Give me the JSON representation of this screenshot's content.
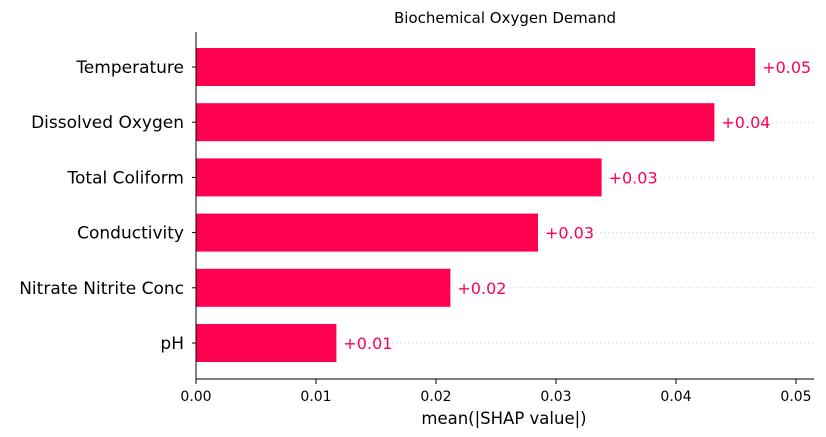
{
  "chart_data": {
    "type": "bar",
    "orientation": "horizontal",
    "title": "Biochemical Oxygen Demand",
    "xlabel": "mean(|SHAP value|)",
    "ylabel": "",
    "xlim": [
      0,
      0.0515
    ],
    "xticks": [
      0,
      0.01,
      0.02,
      0.03,
      0.04,
      0.05
    ],
    "xtick_labels": [
      "0.00",
      "0.01",
      "0.02",
      "0.03",
      "0.04",
      "0.05"
    ],
    "categories": [
      "Temperature",
      "Dissolved Oxygen",
      "Total Coliform",
      "Conductivity",
      "Nitrate Nitrite Conc",
      "pH"
    ],
    "values": [
      0.0466,
      0.0432,
      0.0338,
      0.0285,
      0.0212,
      0.0117
    ],
    "value_labels": [
      "+0.05",
      "+0.04",
      "+0.03",
      "+0.03",
      "+0.02",
      "+0.01"
    ],
    "bar_color": "#ff0051",
    "grid": "dotted row guides"
  }
}
